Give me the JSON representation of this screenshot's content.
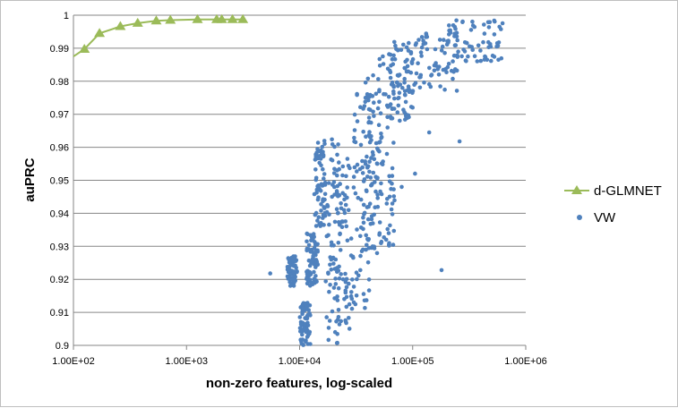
{
  "chart_data": {
    "type": "scatter",
    "title": "",
    "xlabel": "non-zero features, log-scaled",
    "ylabel": "auPRC",
    "x_scale": "log",
    "xlim": [
      100,
      1000000
    ],
    "ylim": [
      0.9,
      1.0
    ],
    "x_ticks": [
      "1.00E+02",
      "1.00E+03",
      "1.00E+04",
      "1.00E+05",
      "1.00E+06"
    ],
    "y_ticks": [
      "0.9",
      "0.91",
      "0.92",
      "0.93",
      "0.94",
      "0.95",
      "0.96",
      "0.97",
      "0.98",
      "0.99",
      "1"
    ],
    "grid": "horizontal",
    "legend_position": "right",
    "series": [
      {
        "name": "d-GLMNET",
        "style": "line-with-triangle-markers",
        "color": "#9bbb59",
        "x": [
          100,
          125,
          170,
          260,
          370,
          540,
          720,
          1250,
          1850,
          2050,
          2550,
          3150
        ],
        "y": [
          0.9875,
          0.9897,
          0.9945,
          0.9966,
          0.9976,
          0.9983,
          0.9985,
          0.9987,
          0.9987,
          0.9987,
          0.9987,
          0.9987
        ],
        "markers": [
          false,
          true,
          true,
          true,
          true,
          true,
          true,
          true,
          true,
          true,
          true,
          true
        ]
      },
      {
        "name": "VW",
        "style": "scatter",
        "color": "#4f81bd",
        "clusters": [
          {
            "x": [
              7800,
              9500
            ],
            "y": [
              0.918,
              0.927
            ]
          },
          {
            "x": [
              10000,
              12500
            ],
            "y": [
              0.9,
              0.913
            ]
          },
          {
            "x": [
              11500,
              14500
            ],
            "y": [
              0.918,
              0.934
            ]
          },
          {
            "x": [
              13500,
              17000
            ],
            "y": [
              0.936,
              0.962
            ]
          },
          {
            "x": [
              17000,
              22000
            ],
            "y": [
              0.9,
              0.963
            ]
          },
          {
            "x": [
              22000,
              30000
            ],
            "y": [
              0.905,
              0.96
            ]
          },
          {
            "x": [
              30000,
              42000
            ],
            "y": [
              0.91,
              0.978
            ]
          },
          {
            "x": [
              38000,
              50000
            ],
            "y": [
              0.925,
              0.984
            ]
          },
          {
            "x": [
              50000,
              70000
            ],
            "y": [
              0.93,
              0.99
            ]
          },
          {
            "x": [
              60000,
              100000
            ],
            "y": [
              0.968,
              0.992
            ]
          },
          {
            "x": [
              90000,
              250000
            ],
            "y": [
              0.977,
              0.996
            ]
          },
          {
            "x": [
              200000,
              650000
            ],
            "y": [
              0.986,
              0.9985
            ]
          }
        ],
        "outliers": [
          {
            "x": 5500,
            "y": 0.9218
          },
          {
            "x": 180000,
            "y": 0.9228
          },
          {
            "x": 260000,
            "y": 0.9618
          },
          {
            "x": 140000,
            "y": 0.9645
          },
          {
            "x": 105000,
            "y": 0.952
          },
          {
            "x": 80000,
            "y": 0.948
          }
        ]
      }
    ]
  }
}
